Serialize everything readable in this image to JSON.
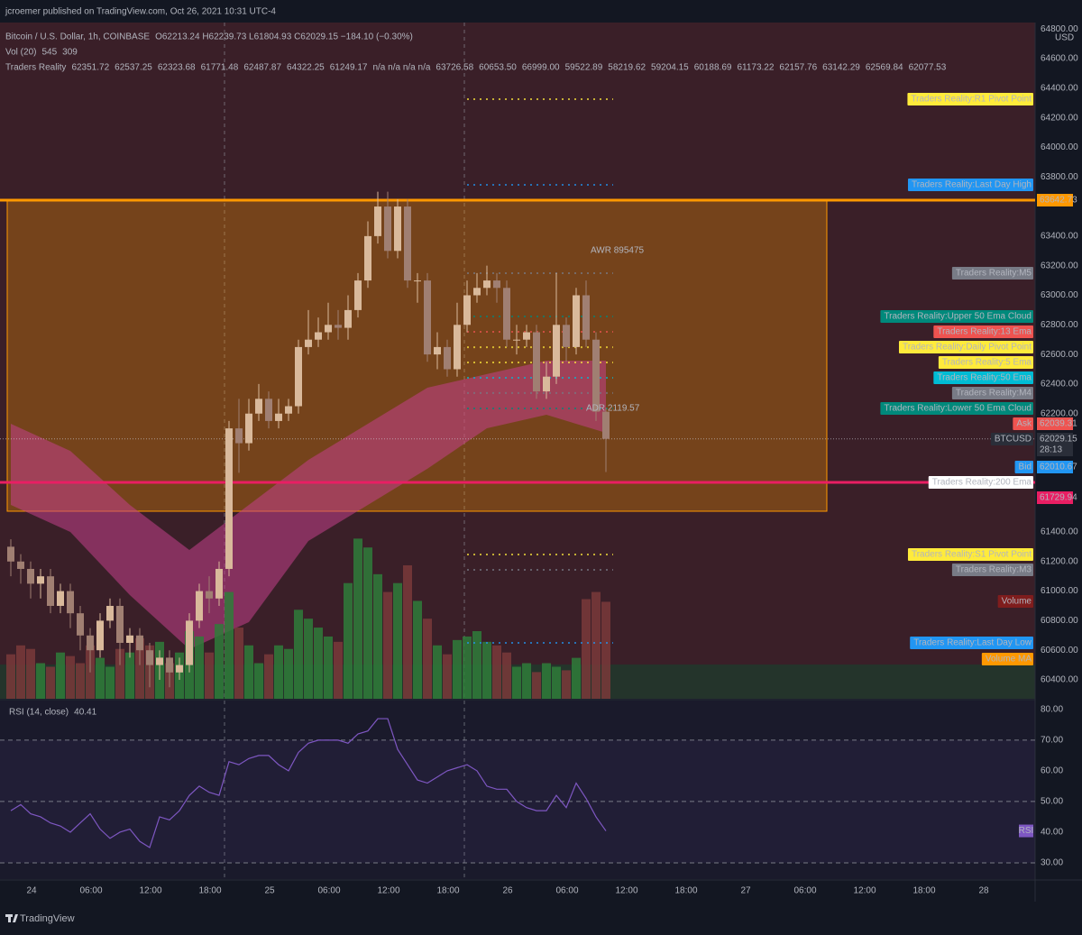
{
  "header": {
    "publisher": "jcroemer published on TradingView.com, Oct 26, 2021 10:31 UTC-4",
    "symbol": "Bitcoin / U.S. Dollar, 1h, COINBASE",
    "ohlc": "O62213.24 H62239.73 L61804.93 C62029.15 −184.10 (−0.30%)",
    "volume_label": "Vol (20)",
    "volume_values": [
      {
        "text": "545",
        "color": "#a34848"
      },
      {
        "text": "309",
        "color": "#ff9800"
      }
    ],
    "indicator": "Traders Reality",
    "indicator_values": [
      {
        "text": "62351.72",
        "color": "#ffeb3b"
      },
      {
        "text": "62537.25",
        "color": "#ef5350"
      },
      {
        "text": "62323.68",
        "color": "#26c6da"
      },
      {
        "text": "61771.48",
        "color": "#ffffff"
      },
      {
        "text": "62487.87",
        "color": "#ffeb3b"
      },
      {
        "text": "64322.25",
        "color": "#ffeb3b"
      },
      {
        "text": "61249.17",
        "color": "#ffeb3b"
      },
      {
        "text": "n/a n/a n/a n/a",
        "color": "#b2b5be"
      },
      {
        "text": "63726.58",
        "color": "#42a5f5"
      },
      {
        "text": "60653.50",
        "color": "#42a5f5"
      },
      {
        "text": "66999.00",
        "color": "#66bb6a"
      },
      {
        "text": "59522.89",
        "color": "#66bb6a"
      },
      {
        "text": "58219.62",
        "color": "#9e9e9e"
      },
      {
        "text": "59204.15",
        "color": "#9e9e9e"
      },
      {
        "text": "60188.69",
        "color": "#9e9e9e"
      },
      {
        "text": "61173.22",
        "color": "#9e9e9e"
      },
      {
        "text": "62157.76",
        "color": "#9e9e9e"
      },
      {
        "text": "63142.29",
        "color": "#9e9e9e"
      },
      {
        "text": "62569.84",
        "color": "#26a69a"
      },
      {
        "text": "62077.53",
        "color": "#26a69a"
      }
    ]
  },
  "chart_data": [
    {
      "type": "candlestick",
      "currency": "USD",
      "open": [
        61300,
        61200,
        61150,
        61050,
        61100,
        60900,
        61000,
        60850,
        60700,
        60600,
        60800,
        60900,
        60650,
        60700,
        60600,
        60500,
        60550,
        60450,
        60500,
        60800,
        61000,
        60950,
        61150,
        62100,
        62000,
        62200,
        62300,
        62150,
        62200,
        62250,
        62650,
        62700,
        62750,
        62800,
        62780,
        62900,
        63100,
        63400,
        63600,
        63300,
        63600,
        63100,
        63100,
        62600,
        62650,
        62500,
        62800,
        63000,
        63050,
        63100,
        63050,
        62700,
        62700,
        62750,
        62350,
        62450,
        62800,
        62650,
        63000,
        62700,
        62213.24
      ],
      "high": [
        61350,
        61250,
        61200,
        61150,
        61150,
        61050,
        61050,
        60900,
        60750,
        60850,
        60950,
        60950,
        60750,
        60750,
        60650,
        60600,
        60600,
        60550,
        60850,
        61050,
        61100,
        61200,
        62150,
        62300,
        62300,
        62400,
        62350,
        62300,
        62300,
        62700,
        62900,
        62850,
        62950,
        62900,
        63000,
        63150,
        63500,
        63700,
        63700,
        63650,
        63650,
        63150,
        63150,
        62750,
        62700,
        62950,
        63100,
        63150,
        63200,
        63150,
        63100,
        62800,
        62800,
        62800,
        62550,
        63150,
        62850,
        63050,
        63100,
        62750,
        62239.73
      ],
      "low": [
        61100,
        61050,
        60950,
        60950,
        60850,
        60850,
        60750,
        60600,
        60450,
        60550,
        60750,
        60500,
        60550,
        60500,
        60350,
        60400,
        60350,
        60400,
        60450,
        60750,
        60850,
        60900,
        61100,
        61800,
        61950,
        62150,
        62100,
        62100,
        62150,
        62200,
        62600,
        62650,
        62700,
        62700,
        62700,
        62850,
        63050,
        63350,
        63250,
        63250,
        63050,
        62950,
        62550,
        62500,
        62450,
        62450,
        62750,
        62950,
        63000,
        62950,
        62650,
        62600,
        62650,
        62300,
        62300,
        62400,
        62550,
        62600,
        62650,
        62150,
        61804.93
      ],
      "close": [
        61200,
        61150,
        61050,
        61100,
        60900,
        61000,
        60850,
        60700,
        60600,
        60800,
        60900,
        60650,
        60700,
        60600,
        60500,
        60550,
        60450,
        60500,
        60800,
        61000,
        60950,
        61150,
        62100,
        62000,
        62200,
        62300,
        62150,
        62200,
        62250,
        62650,
        62700,
        62750,
        62800,
        62780,
        62900,
        63100,
        63400,
        63600,
        63300,
        63600,
        63100,
        63100,
        62600,
        62650,
        62500,
        62800,
        63000,
        63050,
        63100,
        63050,
        62700,
        62700,
        62750,
        62350,
        62450,
        62800,
        62650,
        63000,
        62700,
        62213.24,
        62029.15
      ],
      "up_color": "#d9b99b",
      "down_color": "#a07f72",
      "ylim": [
        60272,
        64844
      ],
      "yticks": [
        {
          "value": 64800,
          "label": "64800.00"
        },
        {
          "value": 64600,
          "label": "64600.00"
        },
        {
          "value": 64400,
          "label": "64400.00"
        },
        {
          "value": 64200,
          "label": "64200.00"
        },
        {
          "value": 64000,
          "label": "64000.00"
        },
        {
          "value": 63800,
          "label": "63800.00"
        },
        {
          "value": 63400,
          "label": "63400.00"
        },
        {
          "value": 63200,
          "label": "63200.00"
        },
        {
          "value": 63000,
          "label": "63000.00"
        },
        {
          "value": 62800,
          "label": "62800.00"
        },
        {
          "value": 62600,
          "label": "62600.00"
        },
        {
          "value": 62400,
          "label": "62400.00"
        },
        {
          "value": 62200,
          "label": "62200.00"
        },
        {
          "value": 61400,
          "label": "61400.00"
        },
        {
          "value": 61200,
          "label": "61200.00"
        },
        {
          "value": 61000,
          "label": "61000.00"
        },
        {
          "value": 60800,
          "label": "60800.00"
        },
        {
          "value": 60600,
          "label": "60600.00"
        },
        {
          "value": 60400,
          "label": "60400.00"
        }
      ],
      "xticks": [
        "24",
        "06:00",
        "12:00",
        "18:00",
        "25",
        "06:00",
        "12:00",
        "18:00",
        "26",
        "06:00",
        "12:00",
        "18:00",
        "27",
        "06:00",
        "12:00",
        "18:00",
        "28"
      ],
      "volume": {
        "values": [
          250,
          300,
          280,
          200,
          180,
          260,
          240,
          200,
          300,
          230,
          180,
          280,
          260,
          340,
          300,
          320,
          200,
          260,
          380,
          350,
          260,
          420,
          600,
          400,
          300,
          200,
          250,
          300,
          280,
          500,
          450,
          400,
          350,
          320,
          650,
          900,
          850,
          700,
          600,
          650,
          750,
          550,
          450,
          300,
          250,
          330,
          350,
          380,
          320,
          300,
          260,
          180,
          200,
          150,
          200,
          180,
          160,
          230,
          560,
          600,
          545
        ],
        "ylim": [
          0,
          3800
        ],
        "up_color": "#2f7d3a",
        "down_color": "#7a3a3a"
      },
      "ema_cloud": {
        "upper": [
          62131,
          61948,
          61583,
          61278,
          61583,
          61887,
          62131,
          62375,
          62467,
          62558,
          62558
        ],
        "lower": [
          61583,
          61400,
          60973,
          60607,
          60790,
          61339,
          61583,
          61827,
          62101,
          62192,
          62070
        ],
        "color": "#c2408a"
      },
      "awr_box": {
        "low": 61540,
        "high": 63642.73,
        "label": "AWR 895475",
        "color": "#ff9800"
      },
      "adr_label": "ADR 2119.57",
      "price_tags": [
        {
          "label": "Traders Reality:R1 Pivot Point",
          "value": 64326,
          "color": "#ffeb3b",
          "text_color": "#000000"
        },
        {
          "label": "Traders Reality:Last Day High",
          "value": 63747,
          "color": "#2196f3",
          "text_color": "#ffffff"
        },
        {
          "price": 63642.73,
          "color": "#ff9800",
          "text_color": "#000000"
        },
        {
          "label": "Traders Reality:M5",
          "value": 63149,
          "color": "#787b86",
          "text_color": "#ffffff"
        },
        {
          "label": "Traders Reality:Upper 50 Ema Cloud",
          "value": 62857,
          "color": "#00897b",
          "text_color": "#ffffff"
        },
        {
          "label": "Traders Reality:13 Ema",
          "value": 62753,
          "color": "#ef5350",
          "text_color": "#ffffff"
        },
        {
          "label": "Traders Reality:Daily Pivot Point",
          "value": 62649,
          "color": "#ffeb3b",
          "text_color": "#000000"
        },
        {
          "label": "Traders Reality:5 Ema",
          "value": 62546,
          "color": "#ffeb3b",
          "text_color": "#000000"
        },
        {
          "label": "Traders Reality:50 Ema",
          "value": 62442,
          "color": "#00bcd4",
          "text_color": "#000000"
        },
        {
          "label": "Traders Reality:M4",
          "value": 62339,
          "color": "#787b86",
          "text_color": "#ffffff"
        },
        {
          "label": "Traders Reality:Lower 50 Ema Cloud",
          "value": 62235,
          "color": "#00897b",
          "text_color": "#ffffff"
        },
        {
          "label": "Ask",
          "price": 62039.31,
          "color": "#ef5350",
          "text_color": "#ffffff"
        },
        {
          "label": "BTCUSD",
          "price": 62029.15,
          "countdown": "28:13",
          "color": "#2a2e39",
          "text_color": "#ffffff"
        },
        {
          "label": "Bid",
          "price": 62010.67,
          "color": "#2196f3",
          "text_color": "#ffffff"
        },
        {
          "label": "Traders Reality:200 Ema",
          "value": 61735,
          "color": "#ffffff",
          "text_color": "#000000"
        },
        {
          "price": 61729.94,
          "color": "#e91e63",
          "text_color": "#ffffff"
        },
        {
          "label": "Traders Reality:S1 Pivot Point",
          "value": 61247,
          "color": "#ffeb3b",
          "text_color": "#000000"
        },
        {
          "label": "Traders Reality:M3",
          "value": 61144,
          "color": "#787b86",
          "text_color": "#ffffff"
        },
        {
          "label": "Volume",
          "color": "#7f1d1d",
          "text_color": "#ffffff"
        },
        {
          "label": "Traders Reality:Last Day Low",
          "value": 60650,
          "color": "#2196f3",
          "text_color": "#ffffff"
        },
        {
          "label": "Volume MA",
          "color": "#ff9800",
          "text_color": "#000000"
        }
      ]
    },
    {
      "type": "line",
      "title": "RSI (14, close)",
      "value_label": "40.41",
      "tag": "RSI",
      "color": "#7e57c2",
      "values": [
        47,
        49,
        46,
        45,
        43,
        42,
        40,
        43,
        46,
        41,
        38,
        40,
        41,
        37,
        35,
        45,
        44,
        47,
        52,
        55,
        53,
        52,
        63,
        62,
        64,
        65,
        65,
        62,
        60,
        66,
        69,
        70,
        70,
        70,
        69,
        72,
        73,
        77,
        77,
        67,
        62,
        57,
        56,
        58,
        60,
        61,
        62,
        60,
        55,
        54,
        54,
        50,
        48,
        47,
        47,
        52,
        48,
        56,
        51,
        45,
        40.41
      ],
      "ylim": [
        24.7,
        82.9
      ],
      "yticks": [
        {
          "value": 80,
          "label": "80.00"
        },
        {
          "value": 70,
          "label": "70.00"
        },
        {
          "value": 60,
          "label": "60.00"
        },
        {
          "value": 50,
          "label": "50.00"
        },
        {
          "value": 40,
          "label": "40.00"
        },
        {
          "value": 30,
          "label": "30.00"
        }
      ],
      "levels": [
        70,
        50,
        30
      ]
    }
  ],
  "footer": "TradingView"
}
